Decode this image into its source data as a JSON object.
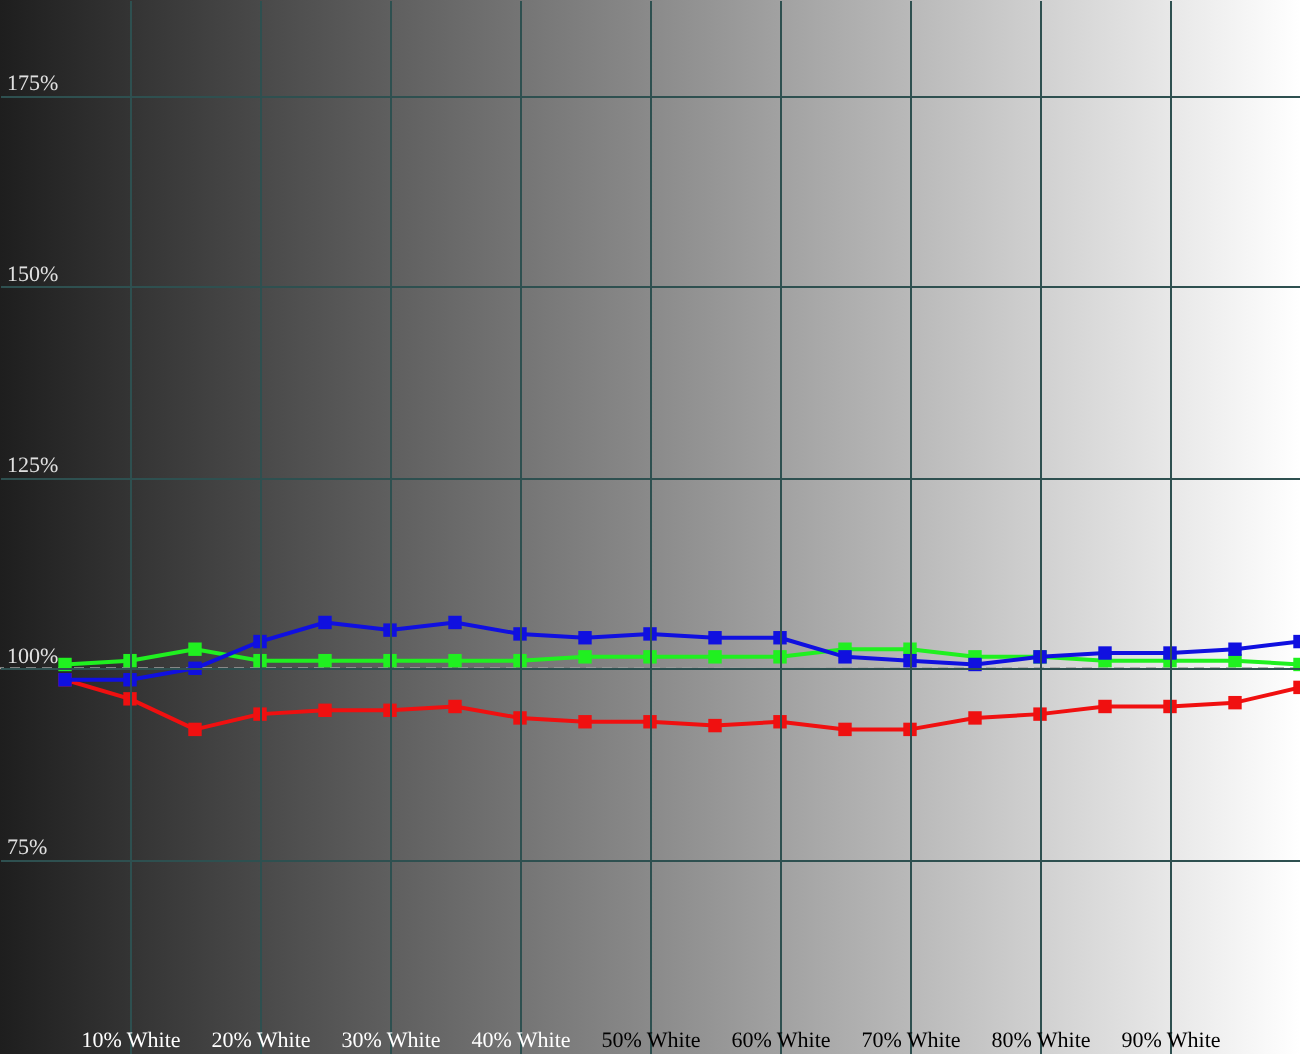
{
  "chart_data": {
    "type": "line",
    "x": [
      5,
      10,
      15,
      20,
      25,
      30,
      35,
      40,
      45,
      50,
      55,
      60,
      65,
      70,
      75,
      80,
      85,
      90,
      95,
      100
    ],
    "series": [
      {
        "color": "#f01010",
        "values": [
          98.5,
          96,
          92,
          94,
          94.5,
          94.5,
          95,
          93.5,
          93,
          93,
          92.5,
          93,
          92,
          92,
          93.5,
          94,
          95,
          95,
          95.5,
          97.5
        ]
      },
      {
        "color": "#20f020",
        "values": [
          100.5,
          101,
          102.5,
          101,
          101,
          101,
          101,
          101,
          101.5,
          101.5,
          101.5,
          101.5,
          102.5,
          102.5,
          101.5,
          101.5,
          101,
          101,
          101,
          100.5
        ]
      },
      {
        "color": "#1010e0",
        "values": [
          98.5,
          98.5,
          100,
          103.5,
          106,
          105,
          106,
          104.5,
          104,
          104.5,
          104,
          104,
          101.5,
          101,
          100.5,
          101.5,
          102,
          102,
          102.5,
          103.5
        ]
      }
    ],
    "xlim": [
      0,
      100
    ],
    "ylim": [
      49.5,
      187.5
    ],
    "xticks": [
      {
        "value": 10,
        "label": "10% White"
      },
      {
        "value": 20,
        "label": "20% White"
      },
      {
        "value": 30,
        "label": "30% White"
      },
      {
        "value": 40,
        "label": "40% White"
      },
      {
        "value": 50,
        "label": "50% White"
      },
      {
        "value": 60,
        "label": "60% White"
      },
      {
        "value": 70,
        "label": "70% White"
      },
      {
        "value": 80,
        "label": "80% White"
      },
      {
        "value": 90,
        "label": "90% White"
      }
    ],
    "yticks": [
      {
        "value": 75,
        "label": "75%"
      },
      {
        "value": 100,
        "label": "100%"
      },
      {
        "value": 125,
        "label": "125%"
      },
      {
        "value": 150,
        "label": "150%"
      },
      {
        "value": 175,
        "label": "175%"
      }
    ],
    "ref_lines": [
      {
        "axis": "y",
        "value": 100,
        "color": "#a0a0a0",
        "line_style": "dashed"
      }
    ],
    "grid": true,
    "marker": "square",
    "line_style": "solid"
  }
}
